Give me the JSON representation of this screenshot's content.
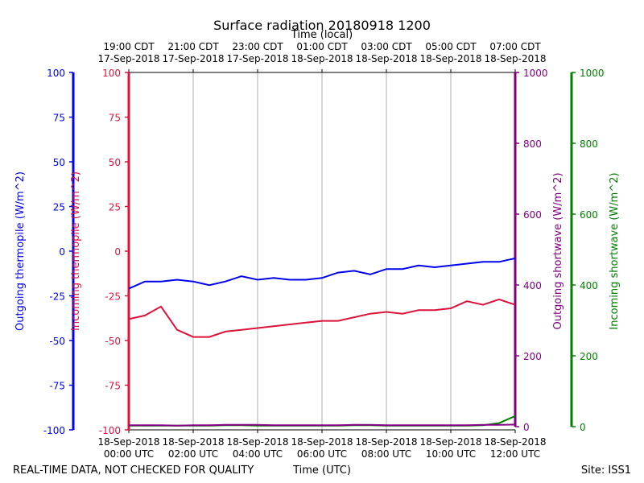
{
  "chart_data": {
    "type": "line",
    "title": "Surface radiation 20180918 1200",
    "xlabel": "Time (UTC)",
    "x2label": "Time (local)",
    "footer_left": "REAL-TIME DATA, NOT CHECKED FOR QUALITY",
    "footer_right": "Site: ISS1",
    "grid": true,
    "x": [
      "2018-09-18 00:00",
      "2018-09-18 00:30",
      "2018-09-18 01:00",
      "2018-09-18 01:30",
      "2018-09-18 02:00",
      "2018-09-18 02:30",
      "2018-09-18 03:00",
      "2018-09-18 03:30",
      "2018-09-18 04:00",
      "2018-09-18 04:30",
      "2018-09-18 05:00",
      "2018-09-18 05:30",
      "2018-09-18 06:00",
      "2018-09-18 06:30",
      "2018-09-18 07:00",
      "2018-09-18 07:30",
      "2018-09-18 08:00",
      "2018-09-18 08:30",
      "2018-09-18 09:00",
      "2018-09-18 09:30",
      "2018-09-18 10:00",
      "2018-09-18 10:30",
      "2018-09-18 11:00",
      "2018-09-18 11:30",
      "2018-09-18 12:00"
    ],
    "xlim": [
      "2018-09-18 00:00",
      "2018-09-18 12:00"
    ],
    "xticks": [
      {
        "value": "2018-09-18 00:00",
        "label": [
          "18-Sep-2018",
          "00:00 UTC"
        ]
      },
      {
        "value": "2018-09-18 02:00",
        "label": [
          "18-Sep-2018",
          "02:00 UTC"
        ]
      },
      {
        "value": "2018-09-18 04:00",
        "label": [
          "18-Sep-2018",
          "04:00 UTC"
        ]
      },
      {
        "value": "2018-09-18 06:00",
        "label": [
          "18-Sep-2018",
          "06:00 UTC"
        ]
      },
      {
        "value": "2018-09-18 08:00",
        "label": [
          "18-Sep-2018",
          "08:00 UTC"
        ]
      },
      {
        "value": "2018-09-18 10:00",
        "label": [
          "18-Sep-2018",
          "10:00 UTC"
        ]
      },
      {
        "value": "2018-09-18 12:00",
        "label": [
          "18-Sep-2018",
          "12:00 UTC"
        ]
      }
    ],
    "x2ticks": [
      {
        "value": "2018-09-18 00:00",
        "label": [
          "19:00 CDT",
          "17-Sep-2018"
        ]
      },
      {
        "value": "2018-09-18 02:00",
        "label": [
          "21:00 CDT",
          "17-Sep-2018"
        ]
      },
      {
        "value": "2018-09-18 04:00",
        "label": [
          "23:00 CDT",
          "17-Sep-2018"
        ]
      },
      {
        "value": "2018-09-18 06:00",
        "label": [
          "01:00 CDT",
          "18-Sep-2018"
        ]
      },
      {
        "value": "2018-09-18 08:00",
        "label": [
          "03:00 CDT",
          "18-Sep-2018"
        ]
      },
      {
        "value": "2018-09-18 10:00",
        "label": [
          "05:00 CDT",
          "18-Sep-2018"
        ]
      },
      {
        "value": "2018-09-18 12:00",
        "label": [
          "07:00 CDT",
          "18-Sep-2018"
        ]
      }
    ],
    "ylabel": "Outgoing thermopile (W/m^2)",
    "ycolor": "#0000ee",
    "ylim": [
      -100,
      100
    ],
    "yticks": [
      -100,
      -75,
      -50,
      -25,
      0,
      25,
      50,
      75,
      100
    ],
    "y2label": "Incoming thermopile (W/m^2)",
    "y2color": "#dc143c",
    "y2lim": [
      -100,
      100
    ],
    "y2ticks": [
      -100,
      -75,
      -50,
      -25,
      0,
      25,
      50,
      75,
      100
    ],
    "y3label": "Outgoing shortwave (W/m^2)",
    "y3color": "#800080",
    "y3lim": [
      0,
      1000
    ],
    "y3ticks": [
      0,
      200,
      400,
      600,
      800,
      1000
    ],
    "y4label": "Incoming shortwave (W/m^2)",
    "y4color": "#008000",
    "y4lim": [
      0,
      1000
    ],
    "y4ticks": [
      0,
      200,
      400,
      600,
      800,
      1000
    ],
    "series": [
      {
        "name": "Outgoing thermopile",
        "axis": "y",
        "color": "#0000ee",
        "values": [
          -21,
          -17,
          -17,
          -16,
          -17,
          -19,
          -17,
          -14,
          -16,
          -15,
          -16,
          -16,
          -15,
          -12,
          -11,
          -13,
          -10,
          -10,
          -8,
          -9,
          -8,
          -7,
          -6,
          -6,
          -4
        ]
      },
      {
        "name": "Incoming thermopile",
        "axis": "y2",
        "color": "#dc143c",
        "values": [
          -38,
          -36,
          -31,
          -44,
          -48,
          -48,
          -45,
          -44,
          -43,
          -42,
          -41,
          -40,
          -39,
          -39,
          -37,
          -35,
          -34,
          -35,
          -33,
          -33,
          -32,
          -28,
          -30,
          -27,
          -30
        ]
      },
      {
        "name": "Incoming shortwave",
        "axis": "y4",
        "color": "#008000",
        "values": [
          3,
          3,
          3,
          3,
          3,
          3,
          4,
          4,
          3,
          3,
          3,
          3,
          3,
          3,
          4,
          4,
          3,
          3,
          3,
          3,
          3,
          3,
          4,
          10,
          30
        ]
      },
      {
        "name": "Outgoing shortwave",
        "axis": "y3",
        "color": "#800080",
        "values": [
          4,
          4,
          4,
          3,
          4,
          4,
          5,
          5,
          5,
          4,
          4,
          4,
          4,
          4,
          5,
          5,
          4,
          4,
          4,
          4,
          4,
          4,
          5,
          5,
          6
        ]
      }
    ]
  }
}
